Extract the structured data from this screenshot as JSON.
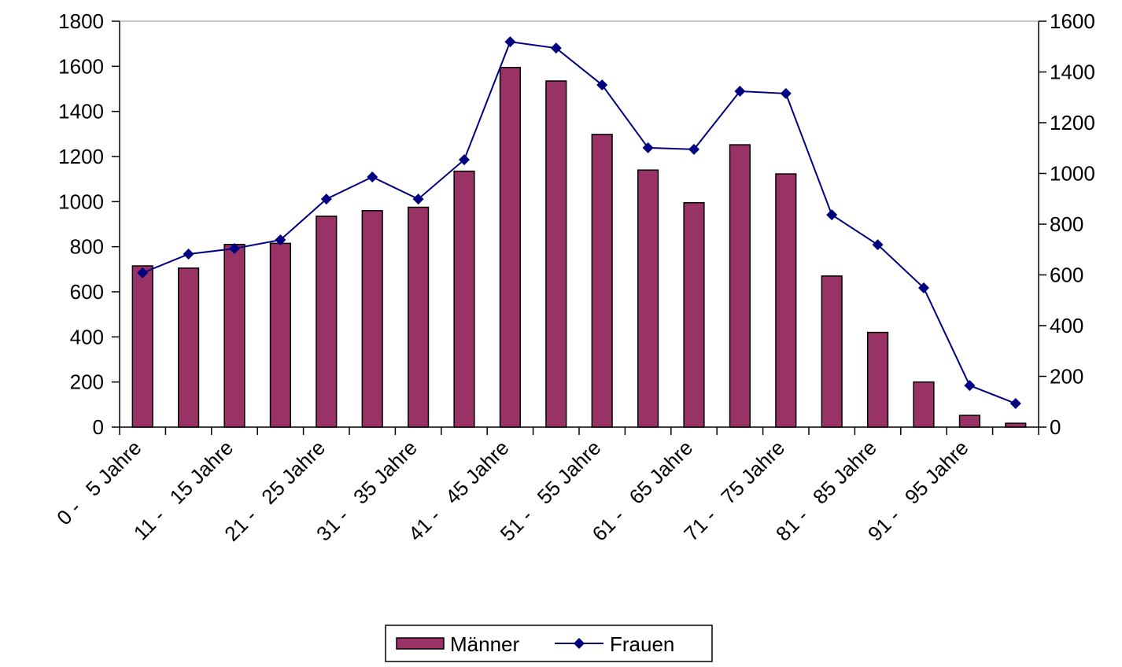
{
  "chart_data": {
    "type": "bar-line",
    "categories": [
      "0 -   5 Jahre",
      null,
      "11 -   15 Jahre",
      null,
      "21 -   25 Jahre",
      null,
      "31 -   35 Jahre",
      null,
      "41 -   45 Jahre",
      null,
      "51 -   55 Jahre",
      null,
      "61 -   65 Jahre",
      null,
      "71 -   75 Jahre",
      null,
      "81 -   85 Jahre",
      null,
      "91 -   95 Jahre",
      null
    ],
    "series": [
      {
        "name": "Männer",
        "color": "#993366",
        "values": [
          715,
          705,
          810,
          815,
          935,
          960,
          975,
          1135,
          1595,
          1535,
          1298,
          1140,
          995,
          1252,
          1123,
          670,
          420,
          200,
          52,
          17
        ]
      },
      {
        "name": "Frauen",
        "color": "#000080",
        "axis": "y2",
        "values": [
          608,
          682,
          704,
          738,
          899,
          986,
          899,
          1054,
          1519,
          1494,
          1349,
          1101,
          1095,
          1324,
          1315,
          837,
          719,
          549,
          164,
          93
        ]
      }
    ],
    "ylim": [
      0,
      1800
    ],
    "yticks": [
      0,
      200,
      400,
      600,
      800,
      1000,
      1200,
      1400,
      1600,
      1800
    ],
    "y2lim": [
      0,
      1600
    ],
    "y2ticks": [
      0,
      200,
      400,
      600,
      800,
      1000,
      1200,
      1400,
      1600
    ],
    "grid": false,
    "legend": "bottom"
  }
}
